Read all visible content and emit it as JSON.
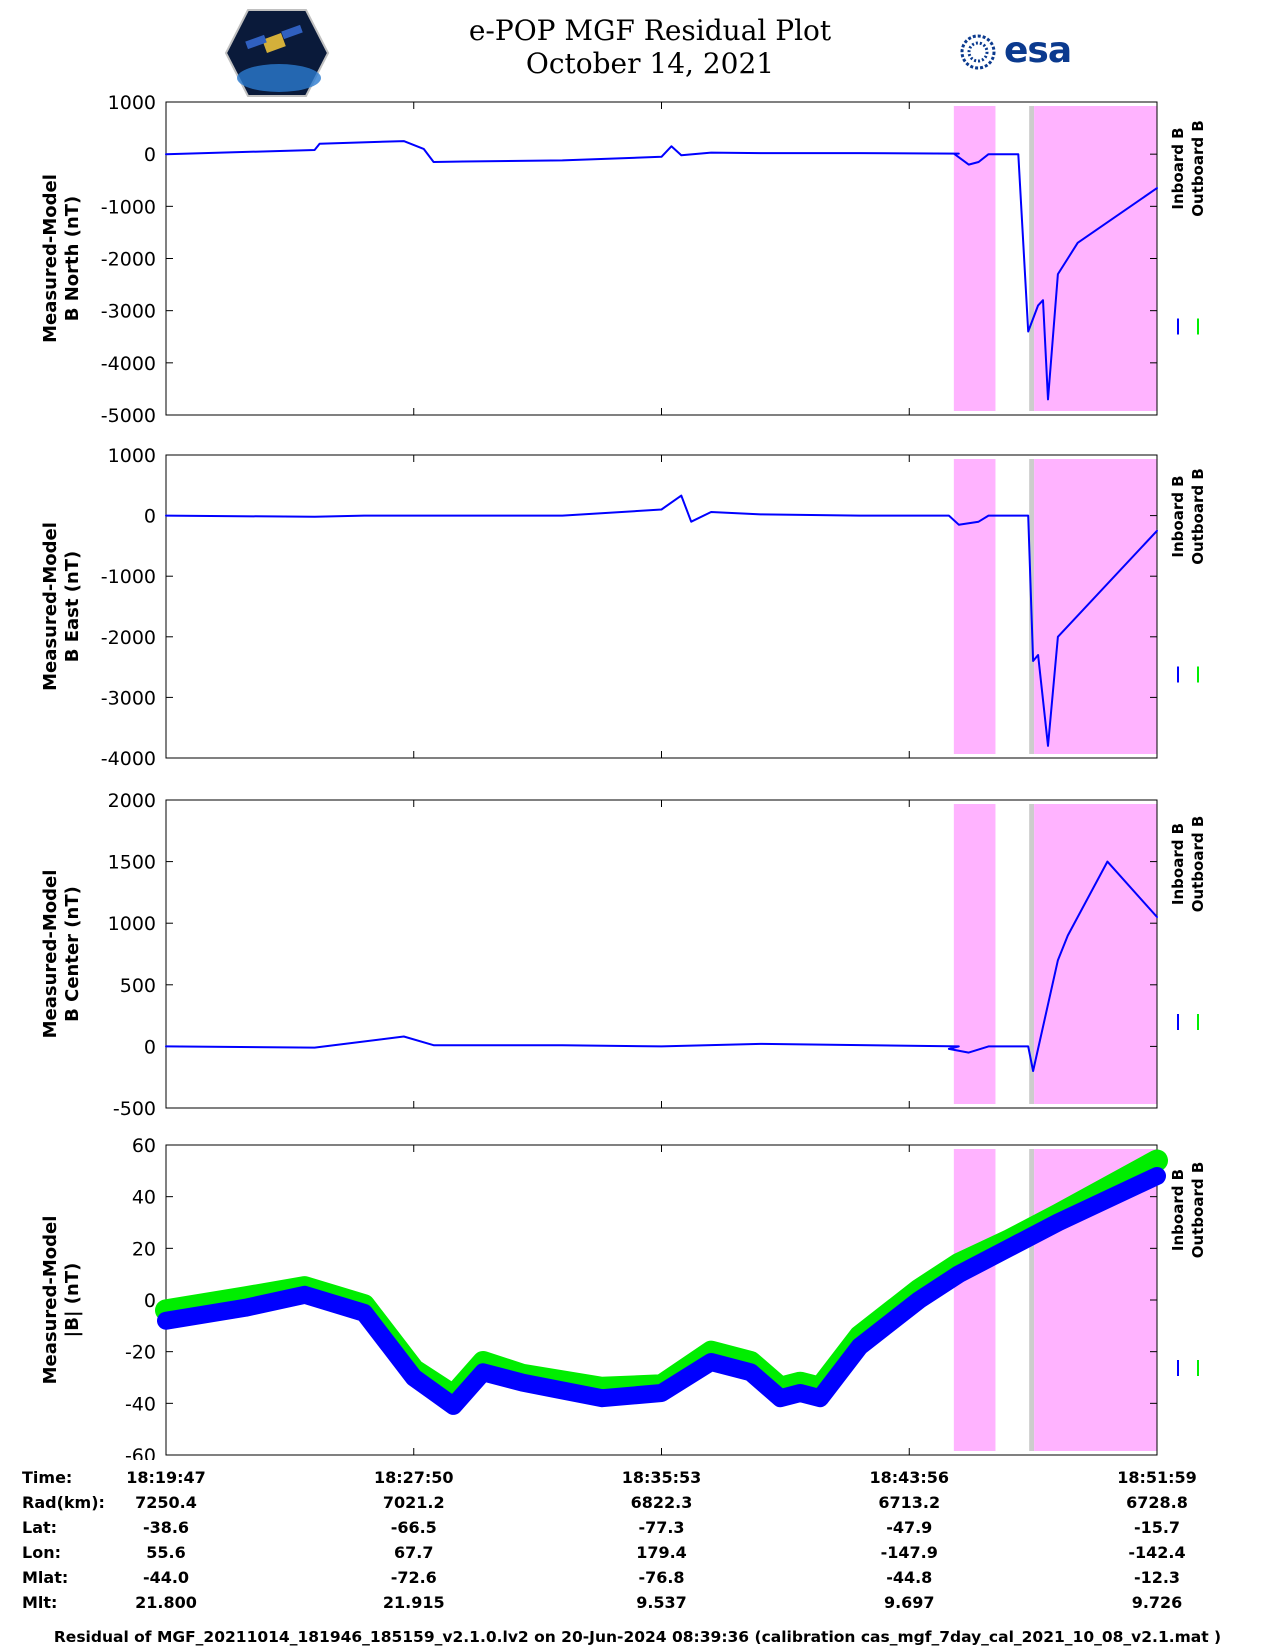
{
  "title": "e-POP MGF Residual Plot",
  "date": "October 14, 2021",
  "logo_right": "esa",
  "logo_left_icon": "epop-satellite-logo",
  "colors": {
    "inboard": "#0000ff",
    "outboard": "#00ee00",
    "shade_magenta": "#ffb3ff",
    "shade_gray": "#cccccc"
  },
  "legend": {
    "inboard": "Inboard B",
    "outboard": "Outboard B"
  },
  "chart_data": [
    {
      "type": "line",
      "ylabel": [
        "Measured-Model",
        "B North (nT)"
      ],
      "ylim": [
        -5000,
        1000
      ],
      "yticks": [
        1000,
        0,
        -1000,
        -2000,
        -3000,
        -4000,
        -5000
      ],
      "tick_labels": [
        "1000",
        "0",
        "-1000",
        "-2000",
        "-3000",
        "-4000",
        "-5000"
      ],
      "series": [
        {
          "name": "Inboard B",
          "x": [
            0,
            0.15,
            0.155,
            0.24,
            0.26,
            0.27,
            0.3,
            0.4,
            0.5,
            0.51,
            0.52,
            0.55,
            0.6,
            0.7,
            0.8,
            0.795,
            0.81,
            0.82,
            0.83,
            0.85,
            0.86,
            0.87,
            0.88,
            0.885,
            0.89,
            0.9,
            0.91,
            0.92,
            1.0
          ],
          "y": [
            0,
            80,
            200,
            250,
            100,
            -150,
            -140,
            -120,
            -50,
            150,
            -20,
            30,
            20,
            20,
            10,
            10,
            -200,
            -150,
            0,
            0,
            0,
            -3400,
            -2900,
            -2800,
            -4700,
            -2300,
            -2000,
            -1700,
            -650
          ]
        }
      ]
    },
    {
      "type": "line",
      "ylabel": [
        "Measured-Model",
        "B East (nT)"
      ],
      "ylim": [
        -4000,
        1000
      ],
      "yticks": [
        1000,
        0,
        -1000,
        -2000,
        -3000,
        -4000
      ],
      "tick_labels": [
        "1000",
        "0",
        "-1000",
        "-2000",
        "-3000",
        "-4000"
      ],
      "series": [
        {
          "name": "Inboard B",
          "x": [
            0,
            0.15,
            0.2,
            0.4,
            0.5,
            0.52,
            0.53,
            0.55,
            0.6,
            0.7,
            0.79,
            0.8,
            0.82,
            0.83,
            0.87,
            0.875,
            0.88,
            0.89,
            0.9,
            1.0
          ],
          "y": [
            0,
            -20,
            0,
            0,
            100,
            330,
            -100,
            60,
            20,
            0,
            0,
            -150,
            -100,
            0,
            0,
            -2400,
            -2300,
            -3800,
            -2000,
            -250
          ]
        }
      ]
    },
    {
      "type": "line",
      "ylabel": [
        "Measured-Model",
        "B Center (nT)"
      ],
      "ylim": [
        -500,
        2000
      ],
      "yticks": [
        2000,
        1500,
        1000,
        500,
        0,
        -500
      ],
      "tick_labels": [
        "2000",
        "1500",
        "1000",
        "500",
        "0",
        "-500"
      ],
      "series": [
        {
          "name": "Inboard B",
          "x": [
            0,
            0.15,
            0.24,
            0.27,
            0.4,
            0.5,
            0.6,
            0.8,
            0.79,
            0.81,
            0.83,
            0.87,
            0.875,
            0.9,
            0.91,
            0.95,
            1.0
          ],
          "y": [
            0,
            -10,
            80,
            10,
            10,
            0,
            20,
            0,
            -20,
            -50,
            0,
            0,
            -200,
            700,
            900,
            1500,
            1050
          ]
        }
      ]
    },
    {
      "type": "line",
      "ylabel": [
        "Measured-Model",
        "|B| (nT)"
      ],
      "ylim": [
        -60,
        60
      ],
      "yticks": [
        60,
        40,
        20,
        0,
        -20,
        -40,
        -60
      ],
      "tick_labels": [
        "60",
        "40",
        "20",
        "0",
        "-20",
        "-40",
        "-60"
      ],
      "series": [
        {
          "name": "Inboard B",
          "x": [
            0,
            0.08,
            0.14,
            0.2,
            0.25,
            0.29,
            0.32,
            0.36,
            0.44,
            0.5,
            0.55,
            0.59,
            0.62,
            0.64,
            0.66,
            0.7,
            0.76,
            0.8,
            0.85,
            0.9,
            1.0
          ],
          "y": [
            -8,
            -3,
            2,
            -5,
            -30,
            -41,
            -28,
            -32,
            -38,
            -36,
            -24,
            -28,
            -38,
            -36,
            -38,
            -18,
            0,
            10,
            20,
            30,
            48
          ]
        },
        {
          "name": "Outboard B",
          "x": [
            0,
            0.08,
            0.14,
            0.2,
            0.25,
            0.29,
            0.32,
            0.36,
            0.44,
            0.5,
            0.55,
            0.59,
            0.62,
            0.64,
            0.66,
            0.7,
            0.76,
            0.8,
            0.85,
            0.9,
            1.0
          ],
          "y": [
            -4,
            1,
            5,
            -2,
            -27,
            -37,
            -24,
            -29,
            -34,
            -33,
            -20,
            -24,
            -34,
            -32,
            -34,
            -14,
            4,
            14,
            23,
            33,
            54
          ]
        }
      ]
    }
  ],
  "x_axis": {
    "ticks": [
      "18:19:47",
      "18:27:50",
      "18:35:53",
      "18:43:56",
      "18:51:59"
    ]
  },
  "info_rows": [
    {
      "label": "Time:",
      "values": [
        "18:19:47",
        "18:27:50",
        "18:35:53",
        "18:43:56",
        "18:51:59"
      ]
    },
    {
      "label": "Rad(km):",
      "values": [
        "7250.4",
        "7021.2",
        "6822.3",
        "6713.2",
        "6728.8"
      ]
    },
    {
      "label": "Lat:",
      "values": [
        "-38.6",
        "-66.5",
        "-77.3",
        "-47.9",
        "-15.7"
      ]
    },
    {
      "label": "Lon:",
      "values": [
        "55.6",
        "67.7",
        "179.4",
        "-147.9",
        "-142.4"
      ]
    },
    {
      "label": "Mlat:",
      "values": [
        "-44.0",
        "-72.6",
        "-76.8",
        "-44.8",
        "-12.3"
      ]
    },
    {
      "label": "Mlt:",
      "values": [
        "21.800",
        "21.915",
        "9.537",
        "9.697",
        "9.726"
      ]
    }
  ],
  "footer": "Residual of MGF_20211014_181946_185159_v2.1.0.lv2 on 20-Jun-2024 08:39:36 (calibration cas_mgf_7day_cal_2021_10_08_v2.1.mat )"
}
